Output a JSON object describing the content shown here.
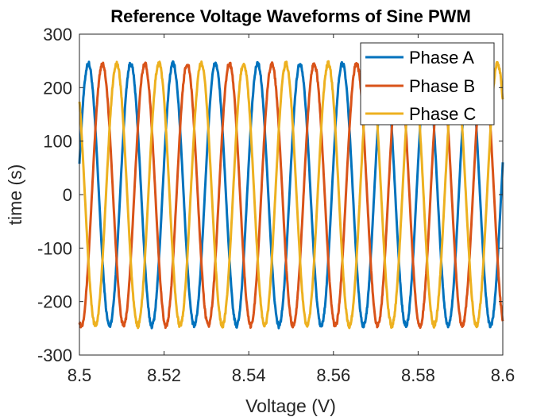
{
  "chart_data": {
    "type": "line",
    "title": "Reference Voltage Waveforms of Sine PWM",
    "xlabel": "Voltage (V)",
    "ylabel": "time (s)",
    "xlim": [
      8.5,
      8.6
    ],
    "ylim": [
      -300,
      300
    ],
    "xticks": [
      8.5,
      8.52,
      8.54,
      8.56,
      8.58,
      8.6
    ],
    "xtick_labels": [
      "8.5",
      "8.52",
      "8.54",
      "8.56",
      "8.58",
      "8.6"
    ],
    "yticks": [
      300,
      200,
      100,
      0,
      -100,
      -200,
      -300
    ],
    "ytick_labels": [
      "300",
      "200",
      "100",
      "0",
      "-100",
      "-200",
      "-300"
    ],
    "grid": false,
    "legend_position": "top-right",
    "series": [
      {
        "name": "Phase A",
        "color": "#0072BD",
        "amplitude": 245,
        "frequency_hz": 100,
        "phase_deg": 14,
        "x": [
          8.5,
          8.5014,
          8.5039,
          8.5064,
          8.5089,
          8.5114,
          8.5139,
          8.5164,
          8.5189,
          8.5214,
          8.5239,
          8.5264,
          8.5289,
          8.5314,
          8.5339,
          8.5364,
          8.5389,
          8.5414,
          8.5439,
          8.5464,
          8.5489,
          8.5514,
          8.5539,
          8.5564,
          8.5589,
          8.5614,
          8.5639,
          8.5664,
          8.5689,
          8.5714,
          8.5739,
          8.5764,
          8.5789,
          8.5814,
          8.5839,
          8.5864,
          8.5889,
          8.5914,
          8.5939,
          8.5964,
          8.5989,
          8.6
        ],
        "y": [
          59,
          0,
          -245,
          0,
          245,
          0,
          -245,
          0,
          245,
          0,
          -245,
          0,
          245,
          0,
          -245,
          0,
          245,
          0,
          -245,
          0,
          245,
          0,
          -245,
          0,
          245,
          0,
          -245,
          0,
          245,
          0,
          -245,
          0,
          245,
          0,
          -245,
          0,
          245,
          0,
          -245,
          0,
          245,
          59
        ]
      },
      {
        "name": "Phase B",
        "color": "#D95319",
        "amplitude": 245,
        "frequency_hz": 100,
        "phase_deg": -106,
        "x": [
          8.5,
          8.5031,
          8.5056,
          8.5081,
          8.5106,
          8.5131,
          8.5156,
          8.5181,
          8.5206,
          8.5231,
          8.5256,
          8.5281,
          8.5306,
          8.5331,
          8.5356,
          8.5381,
          8.5406,
          8.5431,
          8.5456,
          8.5481,
          8.5506,
          8.5531,
          8.5556,
          8.5581,
          8.5606,
          8.5631,
          8.5656,
          8.5681,
          8.5706,
          8.5731,
          8.5756,
          8.5781,
          8.5806,
          8.5831,
          8.5856,
          8.5881,
          8.5906,
          8.5931,
          8.5956,
          8.5981,
          8.6
        ],
        "y": [
          -236,
          0,
          245,
          0,
          -245,
          0,
          245,
          0,
          -245,
          0,
          245,
          0,
          -245,
          0,
          245,
          0,
          -245,
          0,
          245,
          0,
          -245,
          0,
          245,
          0,
          -245,
          0,
          245,
          0,
          -245,
          0,
          245,
          0,
          -245,
          0,
          245,
          0,
          -245,
          0,
          245,
          0,
          -236
        ]
      },
      {
        "name": "Phase C",
        "color": "#EDB120",
        "amplitude": 245,
        "frequency_hz": 100,
        "phase_deg": 134,
        "x": [
          8.5,
          8.5006,
          8.5031,
          8.5056,
          8.5081,
          8.5106,
          8.5131,
          8.5156,
          8.5181,
          8.5206,
          8.5231,
          8.5256,
          8.5281,
          8.5306,
          8.5331,
          8.5356,
          8.5381,
          8.5406,
          8.5431,
          8.5456,
          8.5481,
          8.5506,
          8.5531,
          8.5556,
          8.5581,
          8.5606,
          8.5631,
          8.5656,
          8.5681,
          8.5706,
          8.5731,
          8.5756,
          8.5781,
          8.5806,
          8.5831,
          8.5856,
          8.5881,
          8.5906,
          8.5931,
          8.5956,
          8.5981,
          8.6
        ],
        "y": [
          176,
          245,
          0,
          -245,
          0,
          245,
          0,
          -245,
          0,
          245,
          0,
          -245,
          0,
          245,
          0,
          -245,
          0,
          245,
          0,
          -245,
          0,
          245,
          0,
          -245,
          0,
          245,
          0,
          -245,
          0,
          245,
          0,
          -245,
          0,
          245,
          0,
          -245,
          0,
          245,
          0,
          -245,
          0,
          176
        ]
      }
    ]
  }
}
